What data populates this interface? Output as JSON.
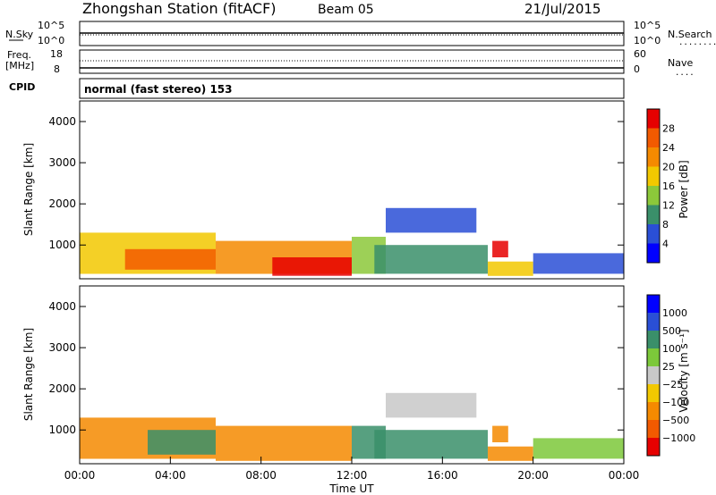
{
  "header": {
    "station": "Zhongshan Station (fitACF)",
    "beam": "Beam 05",
    "date": "21/Jul/2015"
  },
  "top_strip": {
    "left_label": "N.Sky",
    "left_ticks": [
      "10^5",
      "10^0"
    ],
    "right_ticks": [
      "10^5",
      "10^0"
    ],
    "right_label": "N.Search",
    "right_legend_line": "........"
  },
  "freq_strip": {
    "left_label_1": "Freq.",
    "left_label_2": "[MHz]",
    "left_ticks": [
      "18",
      "8"
    ],
    "right_ticks": [
      "60",
      "0"
    ],
    "right_label": "Nave",
    "right_legend_line": "...."
  },
  "cpid": {
    "label": "CPID",
    "text": "normal (fast stereo) 153"
  },
  "colors": {
    "frame": "#000000",
    "power": [
      "#0000ff",
      "#2a4fd6",
      "#3a8f6a",
      "#8cc83a",
      "#f2c800",
      "#f58a00",
      "#f25a00",
      "#e60000"
    ],
    "velocity": [
      "#e60000",
      "#f25a00",
      "#f58a00",
      "#f2c800",
      "#c8c8c8",
      "#7cc83a",
      "#3a8f6a",
      "#2a4fd6",
      "#0000ff"
    ]
  },
  "chart_data": [
    {
      "type": "heatmap",
      "panel": "power",
      "ylabel": "Slant Range [km]",
      "yticks": [
        1000,
        2000,
        3000,
        4000
      ],
      "ylim": [
        180,
        4500
      ],
      "xlim": [
        0,
        24
      ],
      "colorbar": {
        "label": "Power [dB]",
        "ticks": [
          "4",
          "8",
          "12",
          "16",
          "20",
          "24",
          "28"
        ]
      },
      "regions": [
        {
          "t0": 0.0,
          "t1": 6.0,
          "r0": 300,
          "r1": 1300,
          "value": 20
        },
        {
          "t0": 2.0,
          "t1": 6.0,
          "r0": 400,
          "r1": 900,
          "value": 26
        },
        {
          "t0": 6.0,
          "t1": 12.0,
          "r0": 300,
          "r1": 1100,
          "value": 22
        },
        {
          "t0": 8.5,
          "t1": 12.0,
          "r0": 250,
          "r1": 700,
          "value": 30
        },
        {
          "t0": 12.0,
          "t1": 13.5,
          "r0": 300,
          "r1": 1200,
          "value": 14
        },
        {
          "t0": 13.5,
          "t1": 17.5,
          "r0": 1300,
          "r1": 1900,
          "value": 8
        },
        {
          "t0": 13.0,
          "t1": 18.0,
          "r0": 300,
          "r1": 1000,
          "value": 12
        },
        {
          "t0": 18.2,
          "t1": 18.9,
          "r0": 700,
          "r1": 1100,
          "value": 30
        },
        {
          "t0": 18.0,
          "t1": 20.0,
          "r0": 250,
          "r1": 600,
          "value": 18
        },
        {
          "t0": 20.0,
          "t1": 24.0,
          "r0": 300,
          "r1": 800,
          "value": 8
        }
      ]
    },
    {
      "type": "heatmap",
      "panel": "velocity",
      "xlabel": "Time UT",
      "ylabel": "Slant Range [km]",
      "yticks": [
        1000,
        2000,
        3000,
        4000
      ],
      "ylim": [
        180,
        4500
      ],
      "xlim": [
        0,
        24
      ],
      "xticks": [
        "00:00",
        "04:00",
        "08:00",
        "12:00",
        "16:00",
        "20:00",
        "00:00"
      ],
      "colorbar": {
        "label": "Velocity [m s⁻¹]",
        "ticks": [
          "1000",
          "500",
          "100",
          "25",
          "−25",
          "−100",
          "−500",
          "−1000"
        ]
      },
      "regions": [
        {
          "t0": 0.0,
          "t1": 6.0,
          "r0": 300,
          "r1": 1300,
          "value": -150
        },
        {
          "t0": 3.0,
          "t1": 6.0,
          "r0": 400,
          "r1": 1000,
          "value": 300
        },
        {
          "t0": 6.0,
          "t1": 12.0,
          "r0": 250,
          "r1": 1100,
          "value": -200
        },
        {
          "t0": 12.0,
          "t1": 13.5,
          "r0": 300,
          "r1": 1100,
          "value": 150
        },
        {
          "t0": 13.5,
          "t1": 17.5,
          "r0": 1300,
          "r1": 1900,
          "value": 0
        },
        {
          "t0": 13.0,
          "t1": 18.0,
          "r0": 300,
          "r1": 1000,
          "value": 150
        },
        {
          "t0": 18.2,
          "t1": 18.9,
          "r0": 700,
          "r1": 1100,
          "value": -300
        },
        {
          "t0": 18.0,
          "t1": 20.0,
          "r0": 250,
          "r1": 600,
          "value": -200
        },
        {
          "t0": 20.0,
          "t1": 24.0,
          "r0": 300,
          "r1": 800,
          "value": 60
        }
      ]
    }
  ]
}
